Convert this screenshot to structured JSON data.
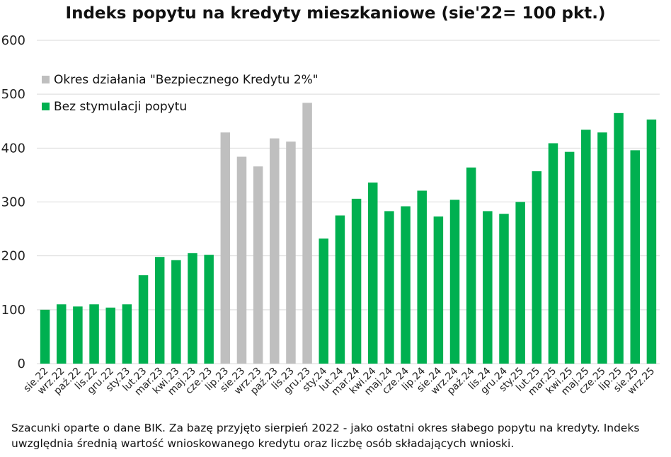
{
  "chart_data": {
    "type": "bar",
    "title": "Indeks popytu na kredyty mieszkaniowe (sie'22= 100 pkt.)",
    "xlabel": "",
    "ylabel": "",
    "ylim": [
      0,
      600
    ],
    "yticks": [
      0,
      100,
      200,
      300,
      400,
      500,
      600
    ],
    "grid": true,
    "legend_position": "top-left",
    "categories": [
      "sie.22",
      "wrz.22",
      "paź.22",
      "lis.22",
      "gru.22",
      "sty.23",
      "lut.23",
      "mar.23",
      "kwi.23",
      "maj.23",
      "cze.23",
      "lip.23",
      "sie.23",
      "wrz.23",
      "paź.23",
      "lis.23",
      "gru.23",
      "sty.24",
      "lut.24",
      "mar.24",
      "kwi.24",
      "maj.24",
      "cze.24",
      "lip.24",
      "sie.24",
      "wrz.24",
      "paź.24",
      "lis.24",
      "gru.24",
      "sty.25",
      "lut.25",
      "mar.25",
      "kwi.25",
      "maj.25",
      "cze.25",
      "lip.25",
      "sie.25",
      "wrz.25"
    ],
    "values": [
      100,
      110,
      106,
      110,
      104,
      110,
      164,
      198,
      192,
      205,
      202,
      429,
      384,
      366,
      418,
      412,
      484,
      232,
      275,
      306,
      336,
      283,
      292,
      321,
      273,
      304,
      364,
      283,
      278,
      300,
      357,
      409,
      393,
      434,
      429,
      465,
      396,
      453
    ],
    "series": [
      {
        "name": "Okres działania \"Bezpiecznego Kredytu 2%\"",
        "color": "#bfbfbf",
        "range": [
          11,
          16
        ]
      },
      {
        "name": "Bez stymulacji popytu",
        "color": "#00b050",
        "range": [
          0,
          10
        ]
      },
      {
        "name": "Bez stymulacji popytu",
        "color": "#00b050",
        "range": [
          17,
          37
        ]
      }
    ],
    "legend": [
      {
        "label": "Okres działania \"Bezpiecznego Kredytu 2%\"",
        "color": "#bfbfbf"
      },
      {
        "label": "Bez stymulacji popytu",
        "color": "#00b050"
      }
    ]
  },
  "footnote": "Szacunki oparte o dane BIK. Za bazę przyjęto sierpień 2022 - jako ostatni okres słabego popytu na kredyty. Indeks uwzględnia średnią wartość wnioskowanego kredytu oraz liczbę osób składających wnioski."
}
